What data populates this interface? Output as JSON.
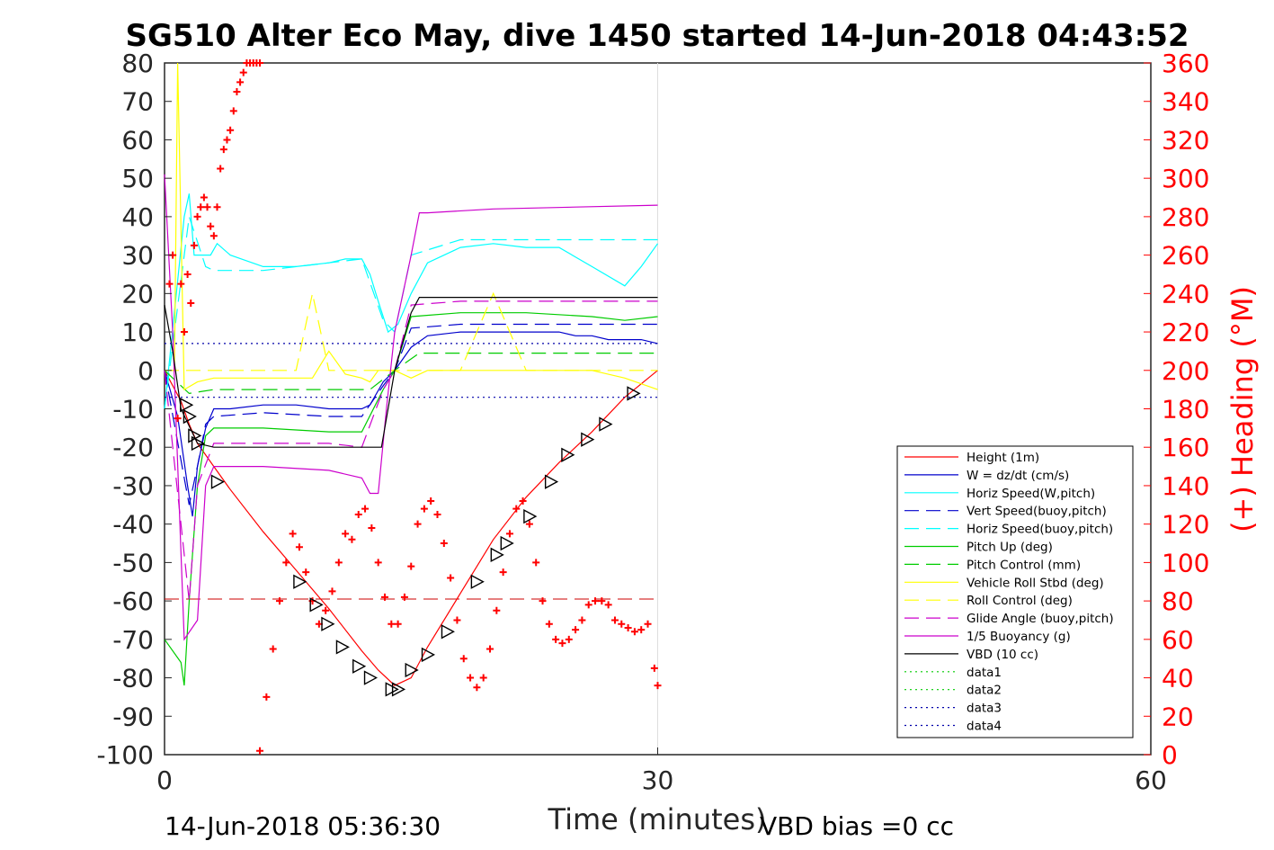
{
  "chart_data": {
    "type": "line",
    "title": "SG510 Alter Eco May, dive 1450 started 14-Jun-2018 04:43:52",
    "xlabel": "Time (minutes)",
    "ylabel_right": "(+) Heading (°M)",
    "xlim": [
      0,
      60
    ],
    "ylim": [
      -100,
      80
    ],
    "ylim_right": [
      0,
      360
    ],
    "xticks": [
      0,
      30,
      60
    ],
    "yticks": [
      80,
      70,
      60,
      50,
      40,
      30,
      20,
      10,
      0,
      -10,
      -20,
      -30,
      -40,
      -50,
      -60,
      -70,
      -80,
      -90,
      -100
    ],
    "yticks_right": [
      360,
      340,
      320,
      300,
      280,
      260,
      240,
      220,
      200,
      180,
      160,
      140,
      120,
      100,
      80,
      60,
      40,
      20,
      0
    ],
    "xgrid_at": 30,
    "legend_position": "lower-right",
    "footer_left": "14-Jun-2018 05:36:30",
    "footer_right": "VBD bias =0 cc",
    "series": [
      {
        "name": "Height (1m)",
        "color": "#ff0000",
        "style": "solid",
        "x": [
          0,
          1,
          1.5,
          2,
          3,
          4,
          6,
          8,
          10,
          12,
          13,
          14,
          15,
          16,
          18,
          20,
          22,
          24,
          26,
          28,
          30
        ],
        "y": [
          0,
          -8,
          -14,
          -19,
          -25,
          -31,
          -42,
          -52,
          -62,
          -73,
          -78,
          -82,
          -80,
          -72,
          -58,
          -44,
          -33,
          -24,
          -16,
          -7,
          0
        ]
      },
      {
        "name": "W = dz/dt (cm/s)",
        "color": "#0000cc",
        "style": "solid",
        "x": [
          0,
          0.8,
          1.4,
          1.7,
          2,
          2.5,
          3,
          4,
          6,
          8,
          10,
          12,
          12.5,
          13.3,
          14,
          15,
          16,
          18,
          20,
          22,
          24,
          25,
          26,
          27,
          28,
          29,
          30
        ],
        "y": [
          0,
          -12,
          -30,
          -38,
          -25,
          -15,
          -10,
          -10,
          -9,
          -9,
          -10,
          -10,
          -9,
          -3,
          0,
          6,
          9,
          10,
          10,
          10,
          10,
          9,
          9,
          8,
          8,
          8,
          7
        ]
      },
      {
        "name": "Horiz Speed(W,pitch)",
        "color": "#00ffff",
        "style": "solid",
        "x": [
          0,
          1.2,
          1.5,
          1.8,
          2.2,
          2.8,
          3.2,
          4,
          6,
          8,
          10,
          11,
          12,
          12.5,
          13,
          13.6,
          14.2,
          15,
          16,
          18,
          20,
          22,
          24,
          26,
          28,
          29,
          30
        ],
        "y": [
          -10,
          40,
          46,
          30,
          30,
          30,
          33,
          30,
          27,
          27,
          28,
          29,
          29,
          25,
          18,
          10,
          12,
          20,
          28,
          32,
          33,
          32,
          32,
          27,
          22,
          27,
          33
        ]
      },
      {
        "name": "Vert Speed(buoy,pitch)",
        "color": "#0000cc",
        "style": "dashed",
        "x": [
          0,
          1.5,
          2,
          2.5,
          3,
          6,
          10,
          12,
          13.3,
          14,
          15,
          18,
          22,
          26,
          30
        ],
        "y": [
          0,
          -35,
          -25,
          -14,
          -12,
          -11,
          -12,
          -12,
          -4,
          0,
          11,
          12,
          12,
          12,
          12
        ]
      },
      {
        "name": "Horiz Speed(buoy,pitch)",
        "color": "#00ffff",
        "style": "dashed",
        "x": [
          0,
          1.5,
          2.5,
          3,
          6,
          10,
          12,
          13.3,
          14,
          15,
          18,
          22,
          26,
          30
        ],
        "y": [
          -10,
          40,
          27,
          26,
          26,
          28,
          29,
          13,
          10,
          30,
          34,
          34,
          34,
          34
        ]
      },
      {
        "name": "Pitch Up (deg)",
        "color": "#00cc00",
        "style": "solid",
        "x": [
          0,
          1,
          1.2,
          1.5,
          2,
          2.5,
          3,
          6,
          10,
          12,
          13.3,
          14,
          15,
          18,
          22,
          26,
          28,
          30
        ],
        "y": [
          -70,
          -76,
          -82,
          -60,
          -30,
          -17,
          -15,
          -15,
          -16,
          -16,
          -5,
          0,
          14,
          15,
          15,
          14,
          13,
          14
        ]
      },
      {
        "name": "Pitch Control (mm)",
        "color": "#00cc00",
        "style": "dashed",
        "x": [
          0,
          1.5,
          3,
          12.5,
          14,
          15.5,
          30
        ],
        "y": [
          0,
          -6,
          -5,
          -5,
          0,
          4.5,
          4.5
        ]
      },
      {
        "name": "Vehicle Roll Stbd (deg)",
        "color": "#ffff00",
        "style": "solid",
        "x": [
          0,
          0.6,
          0.8,
          1.2,
          2,
          3,
          6,
          9,
          10,
          11,
          12,
          12.5,
          13,
          14,
          15,
          16,
          18,
          20,
          22,
          24,
          26,
          28,
          30
        ],
        "y": [
          0,
          0,
          80,
          -5,
          -3,
          -2,
          -2,
          -2,
          5,
          -1,
          -2,
          -3,
          0,
          0,
          -2,
          0,
          0,
          0,
          0,
          0,
          0,
          -2,
          -5
        ]
      },
      {
        "name": "Roll Control (deg)",
        "color": "#ffff00",
        "style": "dashed",
        "x": [
          0,
          2,
          8,
          9,
          10,
          12,
          14,
          18,
          20,
          22,
          26,
          28,
          30
        ],
        "y": [
          0,
          0,
          0,
          20,
          0,
          0,
          0,
          0,
          20,
          0,
          0,
          0,
          0
        ]
      },
      {
        "name": "Glide Angle (buoy,pitch)",
        "color": "#cc00cc",
        "style": "dashed",
        "x": [
          0,
          1,
          1.5,
          2,
          3,
          6,
          10,
          12,
          13.3,
          14,
          15,
          18,
          22,
          26,
          30
        ],
        "y": [
          0,
          -40,
          -60,
          -30,
          -19,
          -19,
          -19,
          -20,
          -5,
          0,
          17,
          18,
          18,
          18,
          18
        ]
      },
      {
        "name": "1/5 Buoyancy (g)",
        "color": "#cc00cc",
        "style": "solid",
        "x": [
          0,
          0.5,
          1.2,
          2,
          2.5,
          3,
          6,
          10,
          12,
          12.5,
          13,
          13.5,
          14,
          15,
          15.5,
          16,
          20,
          25,
          30
        ],
        "y": [
          51,
          10,
          -70,
          -65,
          -30,
          -25,
          -25,
          -26,
          -28,
          -32,
          -32,
          -10,
          10,
          30,
          41,
          41,
          42,
          42.5,
          43
        ]
      },
      {
        "name": "VBD (10 cc)",
        "color": "#000000",
        "style": "solid",
        "x": [
          0,
          0.5,
          1,
          2,
          3,
          6,
          10,
          12,
          13.2,
          14,
          15,
          15.5,
          20,
          25,
          30
        ],
        "y": [
          17,
          5,
          -10,
          -19,
          -20,
          -20,
          -20,
          -20,
          -20,
          0,
          15,
          19,
          19,
          19,
          19
        ]
      },
      {
        "name": "data1",
        "color": "#00cc00",
        "style": "dotted",
        "x": [],
        "y": []
      },
      {
        "name": "data2",
        "color": "#00cc00",
        "style": "dotted",
        "x": [],
        "y": []
      },
      {
        "name": "data3",
        "color": "#0000aa",
        "style": "dotted",
        "x": [
          0,
          30
        ],
        "y": [
          7,
          7
        ]
      },
      {
        "name": "data4",
        "color": "#0000aa",
        "style": "dotted",
        "x": [
          0,
          30
        ],
        "y": [
          -7,
          -7
        ]
      }
    ],
    "dashed_red_hline": {
      "y": -59.5,
      "x": [
        0,
        30
      ],
      "color": "#cc0000"
    },
    "heading_markers": {
      "color": "#ff0000",
      "symbol": "+",
      "x": [
        0.3,
        0.5,
        0.8,
        1.0,
        1.2,
        1.4,
        1.6,
        1.8,
        2.0,
        2.2,
        2.4,
        2.6,
        2.8,
        3.0,
        3.2,
        3.4,
        3.6,
        3.8,
        4.0,
        4.2,
        4.4,
        4.6,
        4.8,
        5.0,
        5.2,
        5.4,
        5.6,
        5.8,
        5.8,
        6.2,
        6.6,
        7.0,
        7.4,
        7.8,
        8.2,
        8.6,
        9.0,
        9.4,
        9.8,
        10.2,
        10.6,
        11.0,
        11.4,
        11.8,
        12.2,
        12.6,
        13.0,
        13.4,
        13.8,
        14.2,
        14.6,
        15.0,
        15.4,
        15.8,
        16.2,
        16.6,
        17.0,
        17.4,
        17.8,
        18.2,
        18.6,
        19.0,
        19.4,
        19.8,
        20.2,
        20.6,
        21.0,
        21.4,
        21.8,
        22.2,
        22.6,
        23.0,
        23.4,
        23.8,
        24.2,
        24.6,
        25.0,
        25.4,
        25.8,
        26.2,
        26.6,
        27.0,
        27.4,
        27.8,
        28.2,
        28.6,
        29.0,
        29.4,
        29.8,
        30.0
      ],
      "y": [
        245,
        260,
        175,
        245,
        220,
        250,
        235,
        265,
        280,
        285,
        290,
        285,
        275,
        270,
        285,
        305,
        315,
        320,
        325,
        335,
        345,
        350,
        355,
        360,
        360,
        360,
        360,
        360,
        2,
        30,
        55,
        80,
        100,
        115,
        108,
        95,
        80,
        68,
        75,
        85,
        100,
        115,
        112,
        125,
        128,
        118,
        100,
        82,
        68,
        68,
        82,
        98,
        120,
        128,
        132,
        125,
        110,
        92,
        70,
        50,
        40,
        35,
        40,
        55,
        75,
        95,
        115,
        128,
        132,
        120,
        100,
        80,
        68,
        60,
        58,
        60,
        65,
        70,
        78,
        80,
        80,
        78,
        70,
        68,
        66,
        64,
        65,
        68,
        45,
        36
      ]
    },
    "triangle_markers": {
      "color": "#000000",
      "symbol": "triangle",
      "points": [
        [
          1.3,
          -9
        ],
        [
          1.5,
          -12
        ],
        [
          1.8,
          -17
        ],
        [
          2.0,
          -19
        ],
        [
          3.2,
          -29
        ],
        [
          8.2,
          -55
        ],
        [
          9.2,
          -61
        ],
        [
          9.9,
          -66
        ],
        [
          10.8,
          -72
        ],
        [
          11.8,
          -77
        ],
        [
          12.5,
          -80
        ],
        [
          13.8,
          -83
        ],
        [
          14.2,
          -83
        ],
        [
          15.0,
          -78
        ],
        [
          16.0,
          -74
        ],
        [
          17.2,
          -68
        ],
        [
          19.0,
          -55
        ],
        [
          20.2,
          -48
        ],
        [
          20.8,
          -45
        ],
        [
          22.2,
          -38
        ],
        [
          23.5,
          -29
        ],
        [
          24.5,
          -22
        ],
        [
          25.7,
          -18
        ],
        [
          26.8,
          -14
        ],
        [
          28.5,
          -6
        ]
      ]
    }
  }
}
